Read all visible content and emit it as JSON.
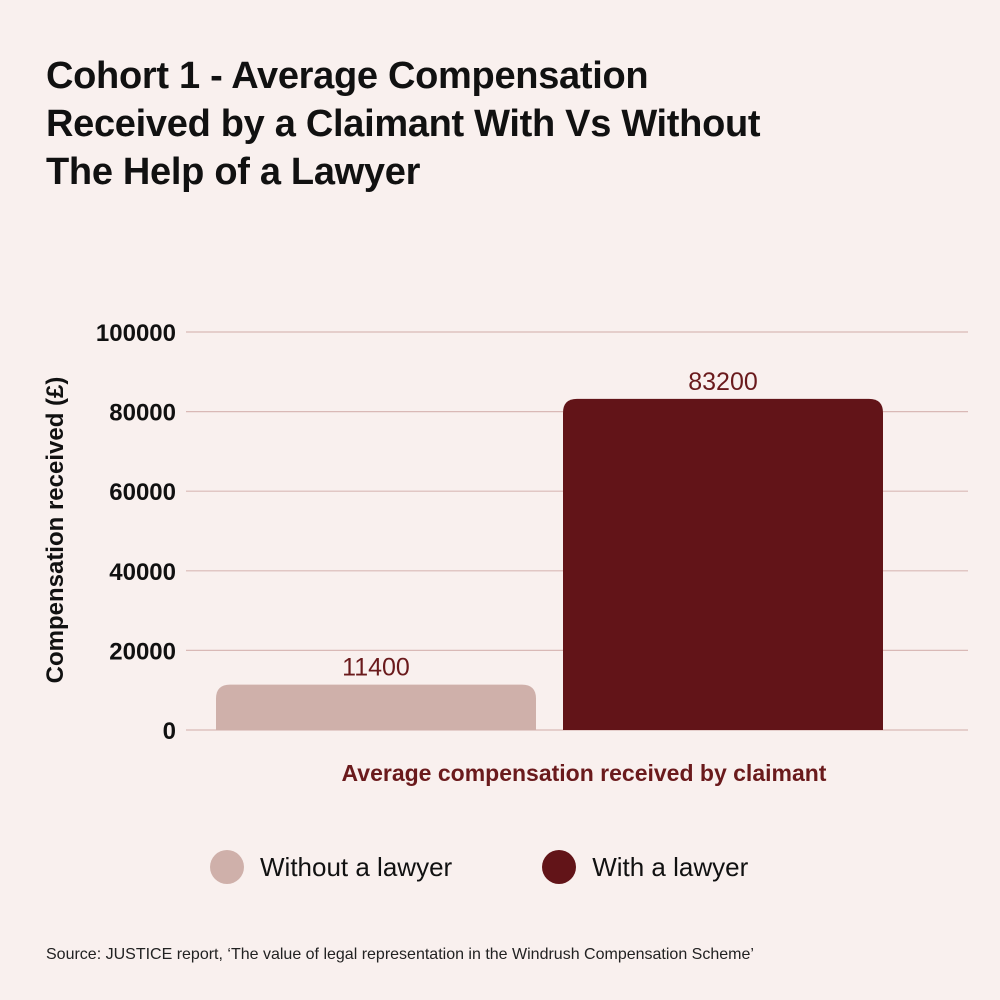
{
  "chart_data": {
    "type": "bar",
    "title_lines": [
      "Cohort 1 - Average Compensation",
      "Received by a Claimant With Vs Without",
      "The Help of a Lawyer"
    ],
    "ylabel": "Compensation received (£)",
    "xlabel": "Average compensation received by claimant",
    "ylim": [
      0,
      100000
    ],
    "y_ticks": [
      "0",
      "20000",
      "40000",
      "60000",
      "80000",
      "100000"
    ],
    "grid": true,
    "legend_position": "bottom",
    "series": [
      {
        "name": "Without a lawyer",
        "values": [
          11400
        ],
        "color": "#cfb0aa"
      },
      {
        "name": "With a lawyer",
        "values": [
          83200
        ],
        "color": "#621418"
      }
    ],
    "data_labels": [
      "11400",
      "83200"
    ]
  },
  "colors": {
    "background": "#f9f0ee",
    "gridline": "#d9b9b6",
    "accent": "#6a1a1c"
  },
  "source": "Source: JUSTICE report, ‘The value of legal representation in the Windrush Compensation Scheme’"
}
